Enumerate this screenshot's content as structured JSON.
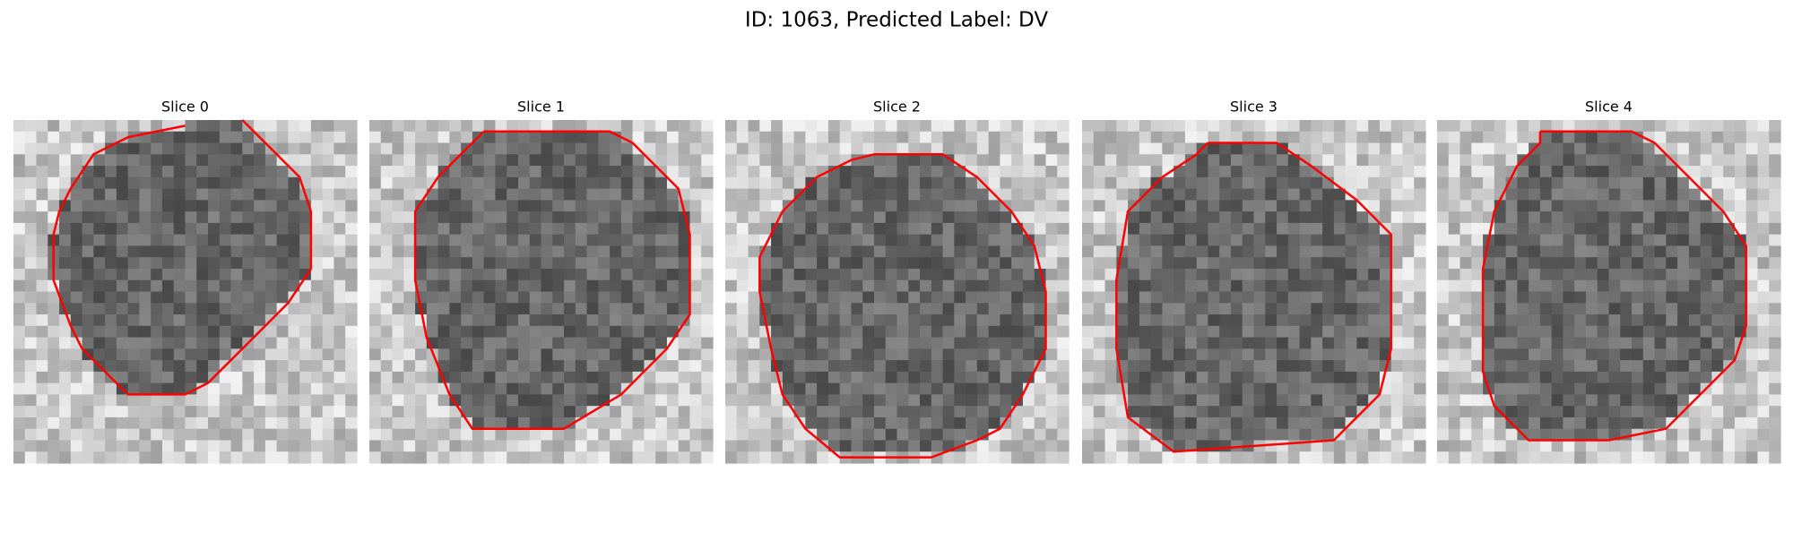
{
  "title": "ID: 1063, Predicted Label: DV",
  "panels": [
    {
      "title": "Slice 0"
    },
    {
      "title": "Slice 1"
    },
    {
      "title": "Slice 2"
    },
    {
      "title": "Slice 3"
    },
    {
      "title": "Slice 4"
    }
  ]
}
